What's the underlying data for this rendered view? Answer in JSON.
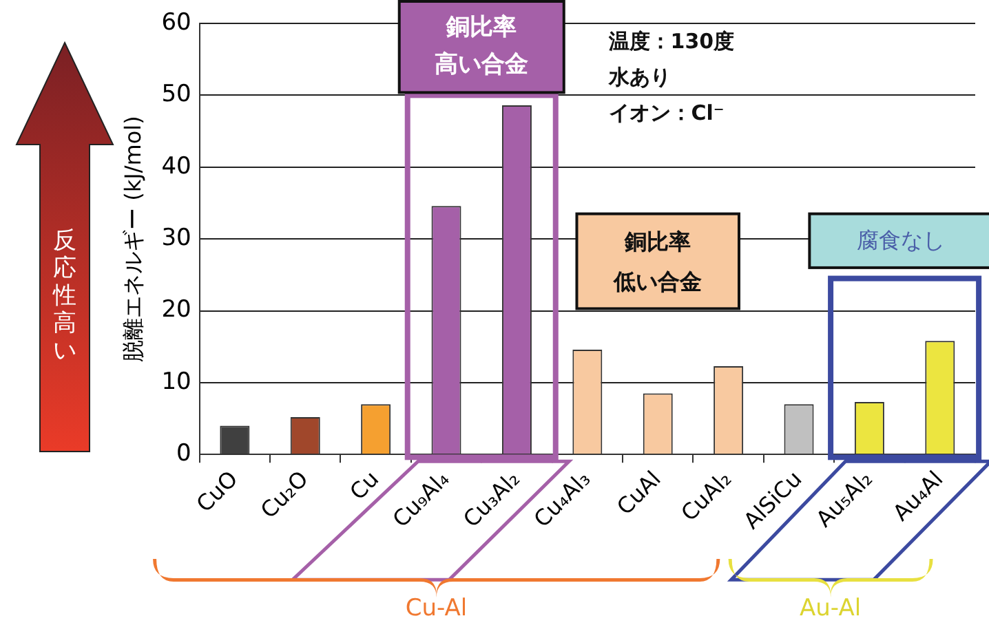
{
  "chart_data": {
    "type": "bar",
    "ylabel": "脱離エネルギー (kJ/mol)",
    "categories": [
      "CuO",
      "Cu₂O",
      "Cu",
      "Cu₉Al₄",
      "Cu₃Al₂",
      "Cu₄Al₃",
      "CuAl",
      "CuAl₂",
      "AlSiCu",
      "Au₅Al₂",
      "Au₄Al"
    ],
    "values": [
      4.0,
      5.2,
      7.0,
      34.6,
      48.6,
      14.6,
      8.5,
      12.3,
      7.0,
      7.3,
      15.8
    ],
    "colors": [
      "#404040",
      "#a0472b",
      "#f5a030",
      "#a560a8",
      "#a560a8",
      "#f8c9a0",
      "#f8c9a0",
      "#f8c9a0",
      "#c0c0c0",
      "#ece540",
      "#ece540"
    ],
    "ylim": [
      0,
      60
    ],
    "yticks": [
      0,
      10,
      20,
      30,
      40,
      50,
      60
    ],
    "grid": "y",
    "legend": false,
    "annotations": [
      "反応性高い",
      "銅比率",
      "高い合金",
      "温度：130度",
      "水あり",
      "イオン：Cl⁻",
      "銅比率",
      "低い合金",
      "腐食なし",
      "Cu-Al",
      "Au-Al"
    ]
  }
}
